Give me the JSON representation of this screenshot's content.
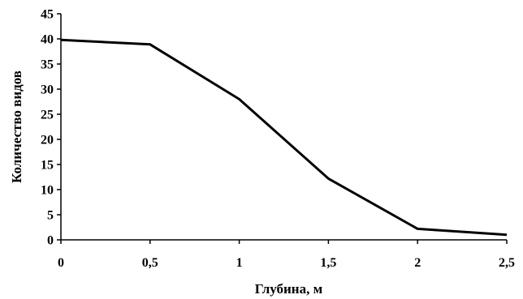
{
  "chart_data": {
    "type": "line",
    "title": "",
    "xlabel": "Глубина, м",
    "ylabel": "Количество видов",
    "x": [
      0,
      0.5,
      1,
      1.5,
      2,
      2.5
    ],
    "x_tick_labels": [
      "0",
      "0,5",
      "1",
      "1,5",
      "2",
      "2,5"
    ],
    "y_ticks": [
      0,
      5,
      10,
      15,
      20,
      25,
      30,
      35,
      40,
      45
    ],
    "xlim": [
      0,
      2.5
    ],
    "ylim": [
      0,
      45
    ],
    "grid": false,
    "series": [
      {
        "values": [
          39.8,
          38.9,
          28,
          12.2,
          2.2,
          1
        ]
      }
    ]
  }
}
